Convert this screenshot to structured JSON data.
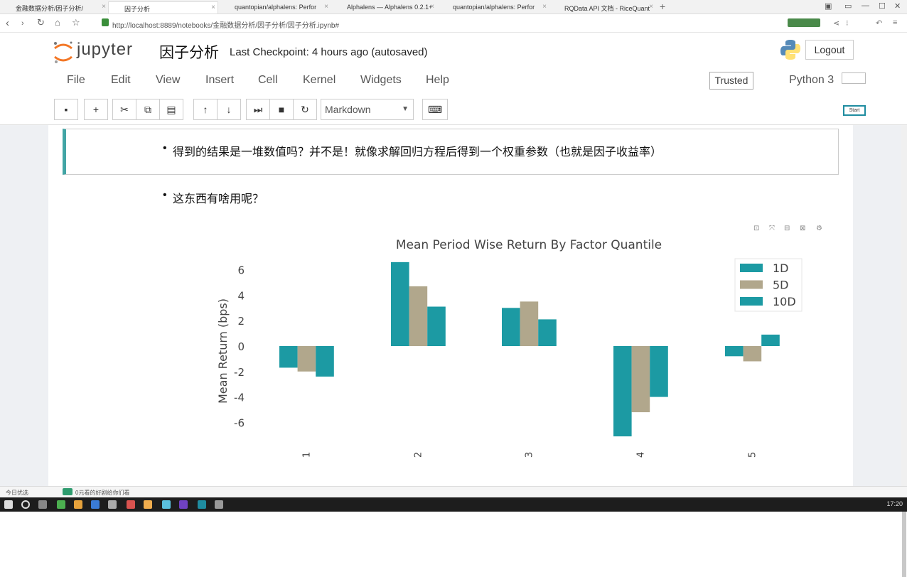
{
  "browser": {
    "tabs": [
      {
        "label": "金融数据分析/因子分析/",
        "color": "#e8a33d"
      },
      {
        "label": "因子分析",
        "color": "#e8a33d"
      },
      {
        "label": "quantopian/alphalens: Perfor",
        "color": "#222"
      },
      {
        "label": "Alphalens — Alphalens 0.2.1+",
        "color": "#cccccc"
      },
      {
        "label": "quantopian/alphalens: Perfor",
        "color": "#222"
      },
      {
        "label": "RQData API 文档 - RiceQuant",
        "color": "#cc3333"
      }
    ],
    "url": "http://localhost:8889/notebooks/金融数据分析/因子分析/因子分析.ipynb#"
  },
  "jupyter": {
    "logo_text": "jupyter",
    "notebook_name": "因子分析",
    "checkpoint": "Last Checkpoint: 4 hours ago (autosaved)",
    "logout": "Logout",
    "menu": [
      "File",
      "Edit",
      "View",
      "Insert",
      "Cell",
      "Kernel",
      "Widgets",
      "Help"
    ],
    "trusted": "Trusted",
    "kernel_name": "Python 3",
    "kernel_start": "Start",
    "cell_type": "Markdown"
  },
  "cells": {
    "bullet1": "得到的结果是一堆数值吗？并不是！就像求解回归方程后得到一个权重参数（也就是因子收益率）",
    "bullet2": "这东西有啥用呢？"
  },
  "statusbar": {
    "left1": "今日优选",
    "left2": "0元看的好剧给你们看"
  },
  "taskbar": {
    "clock": "17:20"
  },
  "chart_data": {
    "type": "bar",
    "title": "Mean Period Wise Return By Factor Quantile",
    "xlabel": "",
    "ylabel": "Mean Return (bps)",
    "categories": [
      "1",
      "2",
      "3",
      "4",
      "5"
    ],
    "series": [
      {
        "name": "1D",
        "color": "#1c9aa3",
        "values": [
          -1.7,
          6.6,
          3.0,
          -7.1,
          -0.8
        ]
      },
      {
        "name": "5D",
        "color": "#b1a78c",
        "values": [
          -2.0,
          4.7,
          3.5,
          -5.2,
          -1.2
        ]
      },
      {
        "name": "10D",
        "color": "#1c9aa3",
        "values": [
          -2.4,
          3.1,
          2.1,
          -4.0,
          0.9
        ]
      }
    ],
    "yticks": [
      "6",
      "4",
      "2",
      "0",
      "-2",
      "-4",
      "-6"
    ],
    "ylim": [
      -7.3,
      6.8
    ],
    "grid": false,
    "legend": "top-right"
  }
}
